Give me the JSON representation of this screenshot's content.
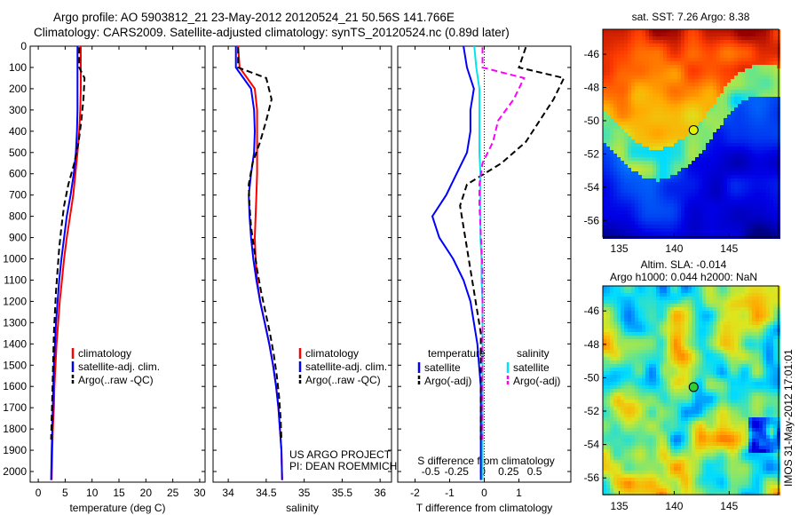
{
  "header": {
    "title": "Argo profile: AO 5903812_21 23-May-2012 20120524_21 50.56S 141.766E",
    "subtitle": "Climatology: CARS2009. Satellite-adjusted climatology: synTS_20120524.nc (0.89d later)"
  },
  "colors": {
    "climatology": "#ff0000",
    "satellite": "#0000ff",
    "argo": "#000000",
    "salinity_satellite": "#00e5ee",
    "salinity_argo": "#ff00ff"
  },
  "chart_data": [
    {
      "type": "line",
      "id": "temperature",
      "xlabel": "temperature (deg C)",
      "ylabel": "",
      "xlim": [
        -1.5,
        31
      ],
      "ylim": [
        0,
        2050
      ],
      "y_inverted": true,
      "xticks": [
        0,
        5,
        10,
        15,
        20,
        25,
        30
      ],
      "yticks": [
        0,
        100,
        200,
        300,
        400,
        500,
        600,
        700,
        800,
        900,
        1000,
        1100,
        1200,
        1300,
        1400,
        1500,
        1600,
        1700,
        1800,
        1900,
        2000
      ],
      "legend": [
        "climatology",
        "satellite-adj. clim.",
        "Argo(..raw -QC)"
      ],
      "legend_position": "lower-center",
      "series": [
        {
          "name": "climatology",
          "style": "solid",
          "color": "#ff0000",
          "x": [
            7.9,
            7.9,
            7.9,
            7.8,
            7.6,
            7.3,
            6.9,
            6.5,
            5.9,
            5.3,
            4.8,
            4.4,
            4.0,
            3.7,
            3.4,
            3.2,
            3.0,
            2.9,
            2.7,
            2.6,
            2.5
          ],
          "y": [
            0,
            100,
            200,
            300,
            400,
            500,
            600,
            700,
            800,
            900,
            1000,
            1100,
            1200,
            1300,
            1400,
            1500,
            1600,
            1700,
            1800,
            1900,
            2040
          ]
        },
        {
          "name": "satellite-adj. clim.",
          "style": "solid",
          "color": "#0000ff",
          "x": [
            7.3,
            7.3,
            7.3,
            7.3,
            7.2,
            7.0,
            6.6,
            6.0,
            5.3,
            4.8,
            4.3,
            3.9,
            3.6,
            3.3,
            3.1,
            2.9,
            2.8,
            2.7,
            2.6,
            2.5,
            2.4
          ],
          "y": [
            0,
            100,
            200,
            300,
            400,
            500,
            600,
            700,
            800,
            900,
            1000,
            1100,
            1200,
            1300,
            1400,
            1500,
            1600,
            1700,
            1800,
            1900,
            2040
          ]
        },
        {
          "name": "Argo(..raw -QC)",
          "style": "dashed",
          "color": "#000000",
          "x": [
            7.6,
            7.6,
            8.6,
            8.4,
            8.0,
            7.5,
            6.7,
            5.6,
            4.8,
            4.3,
            3.9,
            3.6,
            3.3,
            3.1,
            2.9,
            2.8,
            2.7,
            2.6,
            2.5,
            2.4
          ],
          "y": [
            5,
            100,
            150,
            250,
            350,
            450,
            550,
            650,
            750,
            850,
            950,
            1050,
            1150,
            1250,
            1350,
            1450,
            1550,
            1650,
            1750,
            1850
          ]
        }
      ]
    },
    {
      "type": "line",
      "id": "salinity",
      "xlabel": "salinity",
      "xlim": [
        33.8,
        36.15
      ],
      "ylim": [
        0,
        2050
      ],
      "y_inverted": true,
      "xticks": [
        34,
        34.5,
        35,
        35.5,
        36
      ],
      "legend": [
        "climatology",
        "satellite-adj. clim.",
        "Argo(..raw -QC)"
      ],
      "legend_position": "lower-center",
      "annotations": [
        "US ARGO PROJECT",
        "PI: DEAN ROEMMICH"
      ],
      "series": [
        {
          "name": "climatology",
          "style": "solid",
          "color": "#ff0000",
          "x": [
            34.13,
            34.15,
            34.35,
            34.38,
            34.38,
            34.38,
            34.38,
            34.37,
            34.36,
            34.35,
            34.36,
            34.38,
            34.42,
            34.48,
            34.54,
            34.59,
            34.63,
            34.66,
            34.68,
            34.7,
            34.71
          ],
          "y": [
            0,
            100,
            200,
            300,
            400,
            500,
            600,
            700,
            800,
            900,
            1000,
            1100,
            1200,
            1300,
            1400,
            1500,
            1600,
            1700,
            1800,
            1900,
            2040
          ]
        },
        {
          "name": "satellite-adj. clim.",
          "style": "solid",
          "color": "#0000ff",
          "x": [
            34.1,
            34.1,
            34.3,
            34.34,
            34.35,
            34.34,
            34.3,
            34.27,
            34.28,
            34.3,
            34.33,
            34.37,
            34.42,
            34.48,
            34.54,
            34.59,
            34.63,
            34.66,
            34.68,
            34.7,
            34.71
          ],
          "y": [
            0,
            100,
            200,
            300,
            400,
            500,
            600,
            700,
            800,
            900,
            1000,
            1100,
            1200,
            1300,
            1400,
            1500,
            1600,
            1700,
            1800,
            1900,
            2040
          ]
        },
        {
          "name": "Argo(..raw -QC)",
          "style": "dashed",
          "color": "#000000",
          "x": [
            34.13,
            34.13,
            34.5,
            34.57,
            34.5,
            34.42,
            34.32,
            34.27,
            34.28,
            34.3,
            34.34,
            34.38,
            34.43,
            34.49,
            34.55,
            34.6,
            34.64,
            34.67,
            34.69,
            34.7
          ],
          "y": [
            5,
            100,
            150,
            250,
            350,
            450,
            550,
            650,
            750,
            850,
            950,
            1050,
            1150,
            1250,
            1350,
            1450,
            1550,
            1650,
            1750,
            1850
          ]
        }
      ]
    },
    {
      "type": "line",
      "id": "difference",
      "xlabel": "T difference from climatology",
      "xlabel_top": "S difference from climatology",
      "xlim": [
        -2.5,
        2.5
      ],
      "ylim": [
        0,
        2050
      ],
      "y_inverted": true,
      "xticks": [
        -2,
        -1,
        0,
        1
      ],
      "xticklabels": [
        "-2",
        "-1",
        "0",
        "1"
      ],
      "s_ticks": [
        -0.5,
        -0.25,
        0,
        0.25,
        0.5
      ],
      "s_ticklabels": [
        "-0.5",
        "-0.25",
        "0",
        "0.25",
        "0.5"
      ],
      "legend_titles": [
        "temperature",
        "salinity"
      ],
      "legend": [
        "satellite",
        "Argo(-adj)",
        "satellite",
        "Argo(-adj)"
      ],
      "legend_position": "lower-center",
      "series": [
        {
          "name": "satellite",
          "variable": "temperature",
          "style": "solid",
          "color": "#0000ff",
          "x": [
            -0.6,
            -0.5,
            -0.3,
            -0.4,
            -0.4,
            -0.5,
            -0.8,
            -1.1,
            -1.5,
            -1.3,
            -0.9,
            -0.6,
            -0.4,
            -0.3,
            -0.2,
            -0.15,
            -0.1,
            -0.1,
            -0.1,
            -0.1,
            -0.1
          ],
          "y": [
            0,
            100,
            200,
            300,
            400,
            500,
            600,
            700,
            800,
            900,
            1000,
            1100,
            1200,
            1300,
            1400,
            1500,
            1600,
            1700,
            1800,
            1900,
            2040
          ]
        },
        {
          "name": "Argo(-adj)",
          "variable": "temperature",
          "style": "dashed",
          "color": "#000000",
          "x": [
            1.2,
            1.0,
            2.3,
            2.0,
            1.6,
            1.2,
            0.5,
            -0.5,
            -0.7,
            -0.6,
            -0.5,
            -0.4,
            -0.3,
            -0.2,
            -0.1,
            -0.1,
            -0.1,
            -0.1,
            -0.1,
            -0.1
          ],
          "y": [
            5,
            100,
            150,
            250,
            350,
            450,
            550,
            650,
            750,
            850,
            950,
            1050,
            1150,
            1250,
            1350,
            1450,
            1550,
            1650,
            1750,
            1850
          ]
        },
        {
          "name": "satellite",
          "variable": "salinity",
          "style": "solid",
          "color": "#00e5ee",
          "s": [
            -0.08,
            -0.06,
            -0.03,
            -0.03,
            -0.03,
            -0.03,
            -0.02,
            -0.02,
            -0.02,
            -0.02,
            -0.01,
            -0.01,
            0,
            0,
            0,
            0,
            0,
            0,
            0,
            0,
            0
          ],
          "y": [
            0,
            100,
            200,
            300,
            400,
            500,
            600,
            700,
            800,
            900,
            1000,
            1100,
            1200,
            1300,
            1400,
            1500,
            1600,
            1700,
            1800,
            1900,
            2040
          ]
        },
        {
          "name": "Argo(-adj)",
          "variable": "salinity",
          "style": "dashed",
          "color": "#ff00ff",
          "s": [
            0,
            0,
            0.4,
            0.3,
            0.15,
            0.1,
            0,
            -0.03,
            -0.03,
            -0.02,
            -0.01,
            0,
            0,
            0,
            0,
            0,
            0,
            0,
            0,
            0
          ],
          "y": [
            5,
            100,
            150,
            250,
            350,
            450,
            550,
            650,
            750,
            850,
            950,
            1050,
            1150,
            1250,
            1350,
            1450,
            1550,
            1650,
            1750,
            1850
          ]
        }
      ]
    },
    {
      "type": "heatmap",
      "id": "sst-map",
      "title": "sat. SST: 7.26 Argo: 8.38",
      "xlim": [
        133.5,
        149.5
      ],
      "ylim": [
        -57,
        -44.5
      ],
      "xticks": [
        135,
        140,
        145
      ],
      "yticks": [
        -46,
        -48,
        -50,
        -52,
        -54,
        -56
      ],
      "marker": {
        "lon": 141.766,
        "lat": -50.56
      }
    },
    {
      "type": "heatmap",
      "id": "sla-map",
      "title": "Altim. SLA: -0.014",
      "subtitle": "Argo h1000: 0.044 h2000: NaN",
      "xlim": [
        133.5,
        149.5
      ],
      "ylim": [
        -57,
        -44.5
      ],
      "xticks": [
        135,
        140,
        145
      ],
      "yticks": [
        -46,
        -48,
        -50,
        -52,
        -54,
        -56
      ],
      "marker": {
        "lon": 141.766,
        "lat": -50.56
      },
      "side_label": "IMOS 31-May-2012 17:01:01"
    }
  ]
}
